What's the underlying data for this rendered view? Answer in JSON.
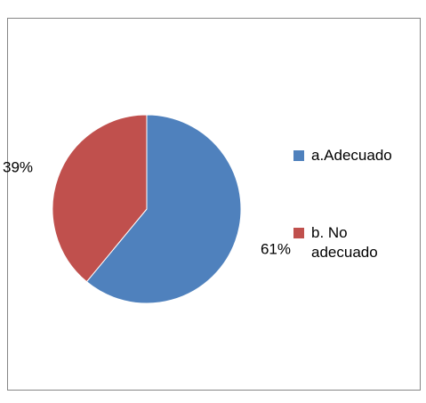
{
  "chart_data": {
    "type": "pie",
    "categories": [
      "a.Adecuado",
      "b. No adecuado"
    ],
    "values": [
      61,
      39
    ],
    "value_labels": [
      "61%",
      "39%"
    ],
    "colors": [
      "#4f81bd",
      "#c0504d"
    ]
  }
}
